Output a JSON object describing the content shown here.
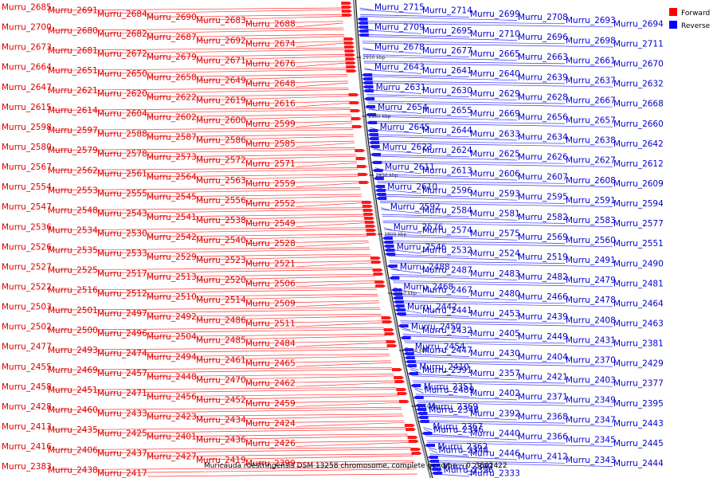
{
  "caption": "Muricauda ruestringensis DSM 13258 chromosome, complete genome. - 0..3842422",
  "legend": {
    "forward": {
      "label": "Forward",
      "color": "#ff0000"
    },
    "reverse": {
      "label": "Reverse",
      "color": "#0000ff"
    }
  },
  "scale_labels": [
    "2950 kbp",
    "2900 kbp",
    "2850 kbp",
    "2800 kbp",
    "2750 kbp",
    "2700 kbp",
    "2650 kbp"
  ],
  "forward_labels": [
    "Murru_2685",
    "Murru_2691",
    "Murru_2684",
    "Murru_2690",
    "Murru_2683",
    "Murru_2688",
    "Murru_2700",
    "Murru_2680",
    "Murru_2682",
    "Murru_2687",
    "Murru_2692",
    "Murru_2674",
    "Murru_2673",
    "Murru_2681",
    "Murru_2672",
    "Murru_2679",
    "Murru_2671",
    "Murru_2676",
    "Murru_2664",
    "Murru_2651",
    "Murru_2650",
    "Murru_2658",
    "Murru_2649",
    "Murru_2648",
    "Murru_2647",
    "Murru_2621",
    "Murru_2620",
    "Murru_2622",
    "Murru_2619",
    "Murru_2616",
    "Murru_2615",
    "Murru_2614",
    "Murru_2604",
    "Murru_2602",
    "Murru_2600",
    "Murru_2599",
    "Murru_2598",
    "Murru_2597",
    "Murru_2588",
    "Murru_2587",
    "Murru_2586",
    "Murru_2585",
    "Murru_2580",
    "Murru_2579",
    "Murru_2578",
    "Murru_2573",
    "Murru_2572",
    "Murru_2571",
    "Murru_2567",
    "Murru_2562",
    "Murru_2561",
    "Murru_2564",
    "Murru_2563",
    "Murru_2559",
    "Murru_2554",
    "Murru_2553",
    "Murru_2555",
    "Murru_2545",
    "Murru_2556",
    "Murru_2552",
    "Murru_2547",
    "Murru_2548",
    "Murru_2543",
    "Murru_2541",
    "Murru_2538",
    "Murru_2549",
    "Murru_2536",
    "Murru_2534",
    "Murru_2530",
    "Murru_2542",
    "Murru_2540",
    "Murru_2528",
    "Murru_2526",
    "Murru_2535",
    "Murru_2533",
    "Murru_2529",
    "Murru_2523",
    "Murru_2521",
    "Murru_2527",
    "Murru_2525",
    "Murru_2517",
    "Murru_2513",
    "Murru_2520",
    "Murru_2506",
    "Murru_2522",
    "Murru_2516",
    "Murru_2512",
    "Murru_2510",
    "Murru_2514",
    "Murru_2509",
    "Murru_2503",
    "Murru_2501",
    "Murru_2497",
    "Murru_2492",
    "Murru_2486",
    "Murru_2511",
    "Murru_2502",
    "Murru_2500",
    "Murru_2496",
    "Murru_2504",
    "Murru_2485",
    "Murru_2484",
    "Murru_2477",
    "Murru_2493",
    "Murru_2474",
    "Murru_2494",
    "Murru_2461",
    "Murru_2465",
    "Murru_2455",
    "Murru_2469",
    "Murru_2457",
    "Murru_2448",
    "Murru_2470",
    "Murru_2462",
    "Murru_2458",
    "Murru_2451",
    "Murru_2471",
    "Murru_2456",
    "Murru_2452",
    "Murru_2459",
    "Murru_2428",
    "Murru_2460",
    "Murru_2433",
    "Murru_2423",
    "Murru_2434",
    "Murru_2424",
    "Murru_2413",
    "Murru_2435",
    "Murru_2425",
    "Murru_2401",
    "Murru_2436",
    "Murru_2426",
    "Murru_2416",
    "Murru_2406",
    "Murru_2437",
    "Murru_2427",
    "Murru_2419",
    "Murru_2399",
    "Murru_2383",
    "Murru_2438",
    "Murru_2417"
  ],
  "reverse_labels": [
    "Murru_2715",
    "Murru_2714",
    "Murru_2699",
    "Murru_2708",
    "Murru_2693",
    "Murru_2694",
    "Murru_2709",
    "Murru_2695",
    "Murru_2710",
    "Murru_2696",
    "Murru_2698",
    "Murru_2711",
    "Murru_2678",
    "Murru_2677",
    "Murru_2665",
    "Murru_2663",
    "Murru_2661",
    "Murru_2670",
    "Murru_2643",
    "Murru_2641",
    "Murru_2640",
    "Murru_2639",
    "Murru_2637",
    "Murru_2632",
    "Murru_2631",
    "Murru_2630",
    "Murru_2629",
    "Murru_2628",
    "Murru_2667",
    "Murru_2668",
    "Murru_2654",
    "Murru_2655",
    "Murru_2669",
    "Murru_2656",
    "Murru_2657",
    "Murru_2660",
    "Murru_2645",
    "Murru_2644",
    "Murru_2633",
    "Murru_2634",
    "Murru_2638",
    "Murru_2642",
    "Murru_2623",
    "Murru_2624",
    "Murru_2625",
    "Murru_2626",
    "Murru_2627",
    "Murru_2612",
    "Murru_2611",
    "Murru_2613",
    "Murru_2606",
    "Murru_2607",
    "Murru_2608",
    "Murru_2609",
    "Murru_2610",
    "Murru_2596",
    "Murru_2593",
    "Murru_2595",
    "Murru_2591",
    "Murru_2594",
    "Murru_2592",
    "Murru_2584",
    "Murru_2581",
    "Murru_2582",
    "Murru_2583",
    "Murru_2577",
    "Murru_2576",
    "Murru_2574",
    "Murru_2575",
    "Murru_2569",
    "Murru_2560",
    "Murru_2551",
    "Murru_2546",
    "Murru_2532",
    "Murru_2524",
    "Murru_2519",
    "Murru_2491",
    "Murru_2490",
    "Murru_2488",
    "Murru_2487",
    "Murru_2483",
    "Murru_2482",
    "Murru_2479",
    "Murru_2481",
    "Murru_2468",
    "Murru_2467",
    "Murru_2480",
    "Murru_2466",
    "Murru_2478",
    "Murru_2464",
    "Murru_2442",
    "Murru_2441",
    "Murru_2453",
    "Murru_2439",
    "Murru_2408",
    "Murru_2463",
    "Murru_2450",
    "Murru_2432",
    "Murru_2405",
    "Murru_2449",
    "Murru_2431",
    "Murru_2381",
    "Murru_2454",
    "Murru_2447",
    "Murru_2430",
    "Murru_2404",
    "Murru_2370",
    "Murru_2429",
    "Murru_2410",
    "Murru_2391",
    "Murru_2357",
    "Murru_2421",
    "Murru_2403",
    "Murru_2377",
    "Murru_2351",
    "Murru_2489",
    "Murru_2402",
    "Murru_2371",
    "Murru_2349",
    "Murru_2395",
    "Murru_2369",
    "Murru_2348",
    "Murru_2392",
    "Murru_2368",
    "Murru_2347",
    "Murru_2443",
    "Murru_2367",
    "Murru_2346",
    "Murru_2440",
    "Murru_2366",
    "Murru_2345",
    "Murru_2445",
    "Murru_2362",
    "Murru_2344",
    "Murru_2446",
    "Murru_2412",
    "Murru_2343",
    "Murru_2444",
    "Murru_2340",
    "Murru_2396",
    "Murru_2333"
  ]
}
